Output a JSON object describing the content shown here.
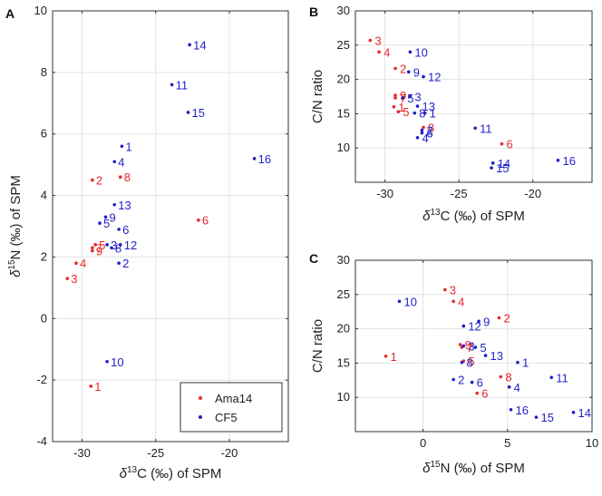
{
  "colors": {
    "ama14": "#e8262b",
    "cf5": "#1f1fc8",
    "grid": "#e3e3e3",
    "axis": "#333333"
  },
  "chart_data": [
    {
      "type": "scatter",
      "panel": "A",
      "xlabel_prefix": "δ",
      "xlabel_sup": "13",
      "xlabel_rest": "C (‰) of SPM",
      "ylabel_prefix": "δ",
      "ylabel_sup": "15",
      "ylabel_rest": "N (‰) of SPM",
      "xlim": [
        -32,
        -16
      ],
      "ylim": [
        -4,
        10
      ],
      "xticks": [
        -30,
        -25,
        -20
      ],
      "yticks": [
        -4,
        -2,
        0,
        2,
        4,
        6,
        8,
        10
      ],
      "legend": {
        "position": "bottom-right",
        "entries": [
          "Ama14",
          "CF5"
        ]
      },
      "series": [
        {
          "name": "Ama14",
          "points": [
            {
              "label": "1",
              "x": -29.4,
              "y": -2.2
            },
            {
              "label": "2",
              "x": -29.3,
              "y": 4.5
            },
            {
              "label": "3",
              "x": -31.0,
              "y": 1.3
            },
            {
              "label": "4",
              "x": -30.4,
              "y": 1.8
            },
            {
              "label": "5",
              "x": -29.1,
              "y": 2.4
            },
            {
              "label": "6",
              "x": -22.1,
              "y": 3.2
            },
            {
              "label": "7",
              "x": -29.3,
              "y": 2.3
            },
            {
              "label": "8",
              "x": -27.4,
              "y": 4.6
            },
            {
              "label": "9",
              "x": -29.3,
              "y": 2.2
            }
          ]
        },
        {
          "name": "CF5",
          "points": [
            {
              "label": "1",
              "x": -27.3,
              "y": 5.6
            },
            {
              "label": "2",
              "x": -27.5,
              "y": 1.8
            },
            {
              "label": "3",
              "x": -28.3,
              "y": 2.4
            },
            {
              "label": "4",
              "x": -27.8,
              "y": 5.1
            },
            {
              "label": "5",
              "x": -28.8,
              "y": 3.1
            },
            {
              "label": "6",
              "x": -27.5,
              "y": 2.9
            },
            {
              "label": "8",
              "x": -28.0,
              "y": 2.3
            },
            {
              "label": "9",
              "x": -28.4,
              "y": 3.3
            },
            {
              "label": "10",
              "x": -28.3,
              "y": -1.4
            },
            {
              "label": "11",
              "x": -23.9,
              "y": 7.6
            },
            {
              "label": "12",
              "x": -27.4,
              "y": 2.4
            },
            {
              "label": "13",
              "x": -27.8,
              "y": 3.7
            },
            {
              "label": "14",
              "x": -22.7,
              "y": 8.9
            },
            {
              "label": "15",
              "x": -22.8,
              "y": 6.7
            },
            {
              "label": "16",
              "x": -18.3,
              "y": 5.2
            }
          ]
        }
      ]
    },
    {
      "type": "scatter",
      "panel": "B",
      "xlabel_prefix": "δ",
      "xlabel_sup": "13",
      "xlabel_rest": "C (‰) of SPM",
      "ylabel_plain": "C/N ratio",
      "xlim": [
        -32,
        -16
      ],
      "ylim": [
        5,
        30
      ],
      "xticks": [
        -30,
        -25,
        -20
      ],
      "yticks": [
        10,
        15,
        20,
        25,
        30
      ],
      "series": [
        {
          "name": "Ama14",
          "points": [
            {
              "label": "1",
              "x": -29.4,
              "y": 16.0
            },
            {
              "label": "2",
              "x": -29.3,
              "y": 21.6
            },
            {
              "label": "3",
              "x": -31.0,
              "y": 25.7
            },
            {
              "label": "4",
              "x": -30.4,
              "y": 24.0
            },
            {
              "label": "5",
              "x": -29.1,
              "y": 15.3
            },
            {
              "label": "6",
              "x": -22.1,
              "y": 10.6
            },
            {
              "label": "7",
              "x": -29.3,
              "y": 17.3
            },
            {
              "label": "8",
              "x": -27.4,
              "y": 13.0
            },
            {
              "label": "9",
              "x": -29.3,
              "y": 17.7
            }
          ]
        },
        {
          "name": "CF5",
          "points": [
            {
              "label": "1",
              "x": -27.3,
              "y": 15.1
            },
            {
              "label": "2",
              "x": -27.5,
              "y": 12.6
            },
            {
              "label": "3",
              "x": -28.3,
              "y": 17.5
            },
            {
              "label": "4",
              "x": -27.8,
              "y": 11.5
            },
            {
              "label": "5",
              "x": -28.8,
              "y": 17.3
            },
            {
              "label": "6",
              "x": -27.5,
              "y": 12.2
            },
            {
              "label": "8",
              "x": -28.0,
              "y": 15.1
            },
            {
              "label": "9",
              "x": -28.4,
              "y": 21.1
            },
            {
              "label": "10",
              "x": -28.3,
              "y": 24.0
            },
            {
              "label": "11",
              "x": -23.9,
              "y": 12.9
            },
            {
              "label": "12",
              "x": -27.4,
              "y": 20.4
            },
            {
              "label": "13",
              "x": -27.8,
              "y": 16.1
            },
            {
              "label": "14",
              "x": -22.7,
              "y": 7.8
            },
            {
              "label": "15",
              "x": -22.8,
              "y": 7.1
            },
            {
              "label": "16",
              "x": -18.3,
              "y": 8.2
            }
          ]
        }
      ]
    },
    {
      "type": "scatter",
      "panel": "C",
      "xlabel_prefix": "δ",
      "xlabel_sup": "15",
      "xlabel_rest": "N (‰) of SPM",
      "ylabel_plain": "C/N ratio",
      "xlim": [
        -4,
        10
      ],
      "ylim": [
        5,
        30
      ],
      "xticks": [
        0,
        5,
        10
      ],
      "yticks": [
        10,
        15,
        20,
        25,
        30
      ],
      "series": [
        {
          "name": "Ama14",
          "points": [
            {
              "label": "1",
              "x": -2.2,
              "y": 16.0
            },
            {
              "label": "2",
              "x": 4.5,
              "y": 21.6
            },
            {
              "label": "3",
              "x": 1.3,
              "y": 25.7
            },
            {
              "label": "4",
              "x": 1.8,
              "y": 24.0
            },
            {
              "label": "5",
              "x": 2.4,
              "y": 15.3
            },
            {
              "label": "6",
              "x": 3.2,
              "y": 10.6
            },
            {
              "label": "7",
              "x": 2.3,
              "y": 17.3
            },
            {
              "label": "8",
              "x": 4.6,
              "y": 13.0
            },
            {
              "label": "9",
              "x": 2.2,
              "y": 17.7
            }
          ]
        },
        {
          "name": "CF5",
          "points": [
            {
              "label": "1",
              "x": 5.6,
              "y": 15.1
            },
            {
              "label": "2",
              "x": 1.8,
              "y": 12.6
            },
            {
              "label": "3",
              "x": 2.4,
              "y": 17.5
            },
            {
              "label": "4",
              "x": 5.1,
              "y": 11.5
            },
            {
              "label": "5",
              "x": 3.1,
              "y": 17.3
            },
            {
              "label": "6",
              "x": 2.9,
              "y": 12.2
            },
            {
              "label": "8",
              "x": 2.3,
              "y": 15.1
            },
            {
              "label": "9",
              "x": 3.3,
              "y": 21.1
            },
            {
              "label": "10",
              "x": -1.4,
              "y": 24.0
            },
            {
              "label": "11",
              "x": 7.6,
              "y": 12.9
            },
            {
              "label": "12",
              "x": 2.4,
              "y": 20.4
            },
            {
              "label": "13",
              "x": 3.7,
              "y": 16.1
            },
            {
              "label": "14",
              "x": 8.9,
              "y": 7.8
            },
            {
              "label": "15",
              "x": 6.7,
              "y": 7.1
            },
            {
              "label": "16",
              "x": 5.2,
              "y": 8.2
            }
          ]
        }
      ]
    }
  ]
}
